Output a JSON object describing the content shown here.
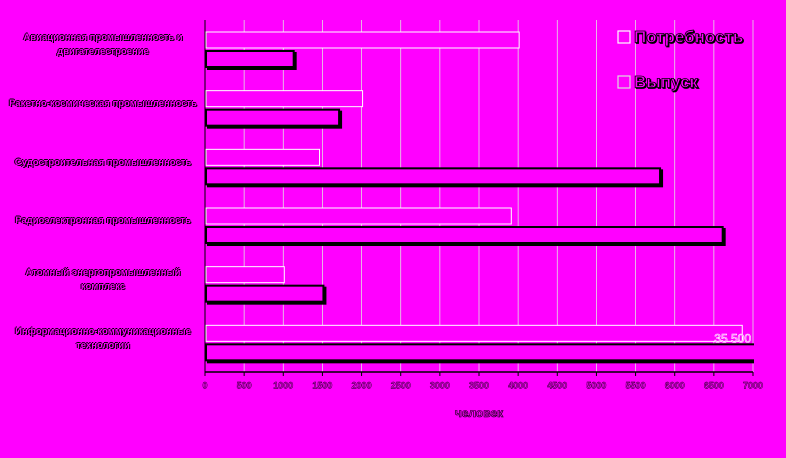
{
  "chart_data": {
    "type": "barh",
    "categories": [
      "Авиационная промышленность и двигателестроение",
      "Ракетно-космическая промышленность",
      "Судостроительная промышленность",
      "Радиоэлектронная промышленность",
      "Атомный энергопромышленный комплекс",
      "Информационно-коммуникационные технологии"
    ],
    "series": [
      {
        "name": "Потребность",
        "color": "#ff00ff",
        "edgecolor": "#ffffff",
        "values": [
          4000,
          2000,
          1450,
          3900,
          1000,
          6850
        ]
      },
      {
        "name": "Выпуск",
        "color": "#ff00ff",
        "edgecolor": "#000000",
        "values": [
          1120,
          1700,
          5800,
          6600,
          1500,
          35500
        ],
        "value_labels": [
          null,
          null,
          null,
          null,
          null,
          "35 500"
        ]
      }
    ],
    "xlabel": "человек",
    "xlim": [
      0,
      7000
    ],
    "xticks": [
      0,
      500,
      1000,
      1500,
      2000,
      2500,
      3000,
      3500,
      4000,
      4500,
      5000,
      5500,
      6000,
      6500,
      7000
    ],
    "grid": true,
    "legend": "upper right",
    "background": "#ff00ff"
  }
}
